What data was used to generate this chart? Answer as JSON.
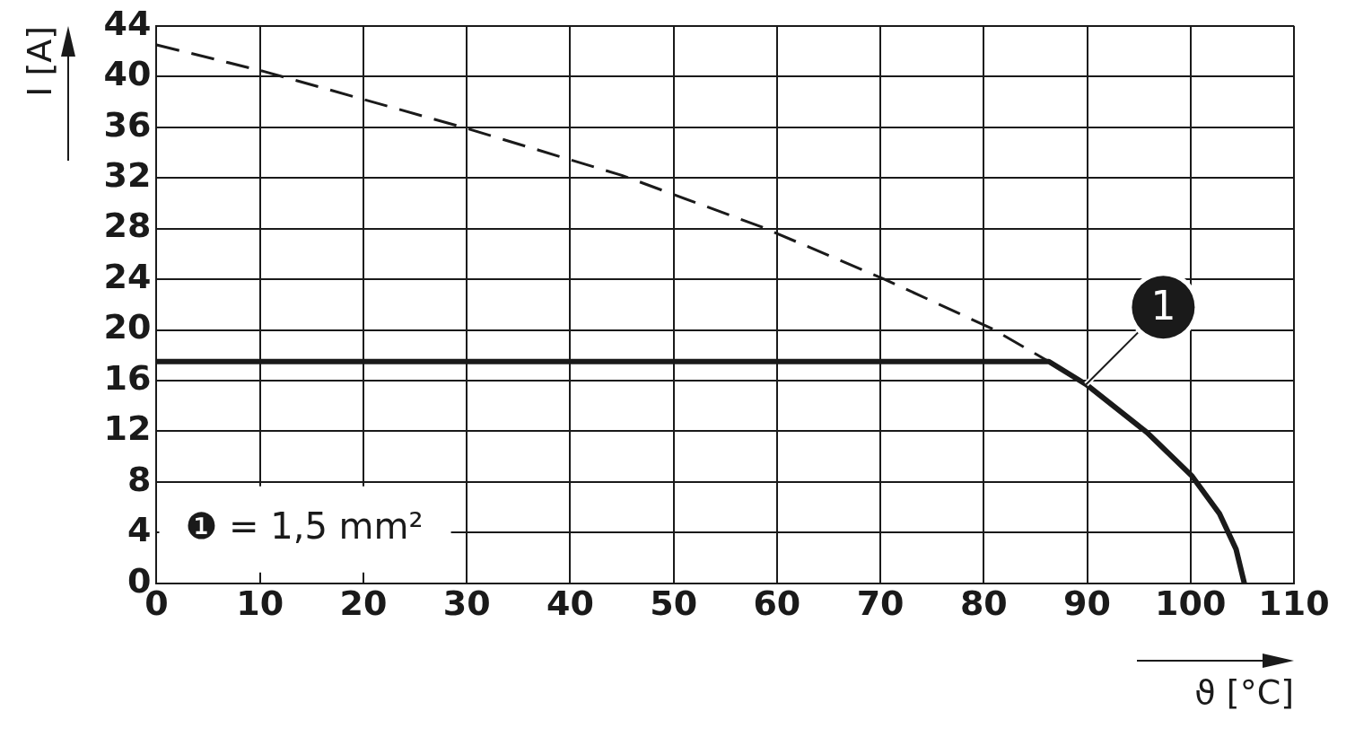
{
  "chart_data": {
    "type": "line",
    "xlabel": "ϑ [°C]",
    "ylabel": "I [A]",
    "xlim": [
      0,
      110
    ],
    "xticks": [
      0,
      10,
      20,
      30,
      40,
      50,
      60,
      70,
      80,
      90,
      100,
      110
    ],
    "ylim": [
      0,
      44
    ],
    "yticks": [
      0,
      4,
      8,
      12,
      16,
      20,
      24,
      28,
      32,
      36,
      40,
      44
    ],
    "grid": true,
    "series": [
      {
        "color": "#1a1a1a",
        "line_style": "dashed",
        "x": [
          0,
          10.4,
          29.6,
          45,
          58.6,
          70.4,
          80.8,
          86.3
        ],
        "values": [
          42.5,
          40.4,
          36.0,
          32.2,
          28.1,
          24.0,
          20.1,
          17.5
        ]
      },
      {
        "name": "1",
        "color": "#1a1a1a",
        "line_style": "solid",
        "x": [
          0,
          86.3,
          89.9,
          95.8,
          100.1,
          102.8,
          104.4,
          105.2
        ],
        "values": [
          17.5,
          17.5,
          15.7,
          11.9,
          8.5,
          5.5,
          2.7,
          0
        ]
      }
    ],
    "annotations": [
      "❶ = 1,5 mm²"
    ]
  }
}
